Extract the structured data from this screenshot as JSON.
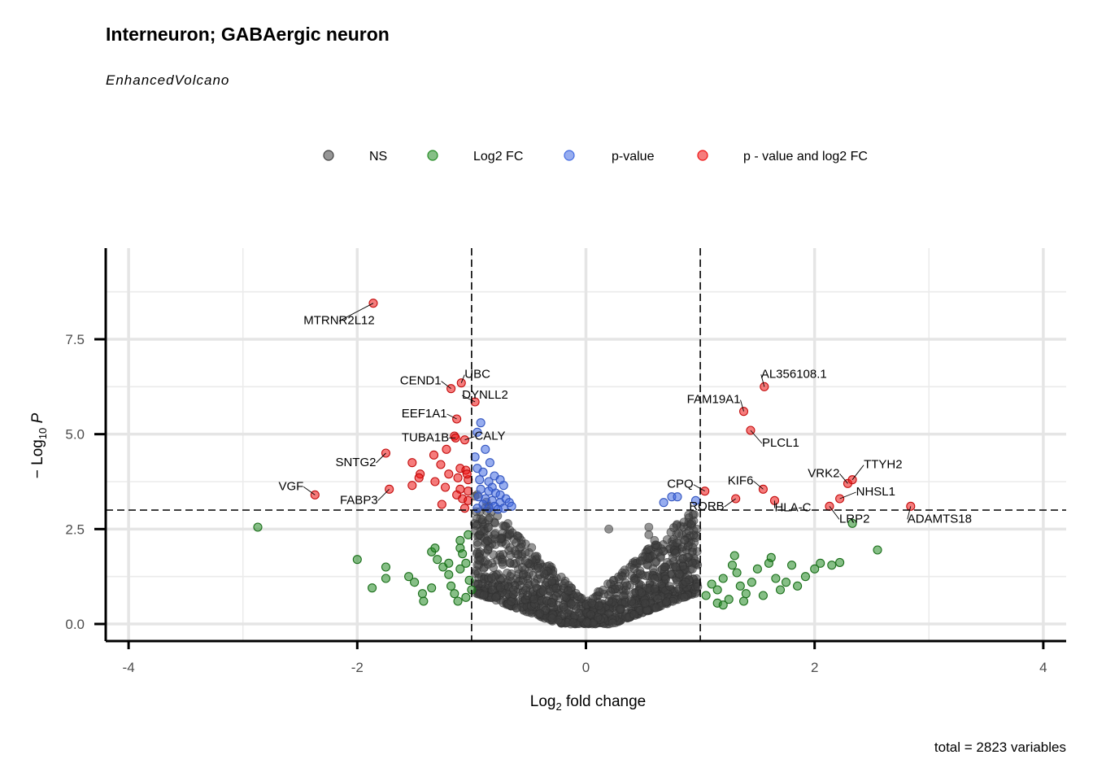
{
  "chart_data": {
    "type": "scatter",
    "title": "Interneuron; GABAergic neuron",
    "subtitle": "EnhancedVolcano",
    "caption": "total = 2823 variables",
    "xlabel": "Log2 fold change",
    "ylabel": "-Log10 P",
    "xlim": [
      -4.2,
      4.2
    ],
    "ylim": [
      -0.45,
      9.9
    ],
    "x_ticks": [
      -4,
      -2,
      0,
      2,
      4
    ],
    "y_ticks": [
      0.0,
      2.5,
      5.0,
      7.5
    ],
    "x_tick_labels": [
      "-4",
      "-2",
      "0",
      "2",
      "4"
    ],
    "y_tick_labels": [
      "0.0",
      "2.5",
      "5.0",
      "7.5"
    ],
    "fc_cutoff": 1,
    "p_cutoff_log10": 3,
    "grid": true,
    "legend_position": "top",
    "legend": [
      {
        "key": "NS",
        "color": "#404040"
      },
      {
        "key": "Log2 FC",
        "color": "#228b22"
      },
      {
        "key": "p-value",
        "color": "#4169e1"
      },
      {
        "key": "p - value and log2 FC",
        "color": "#ee1111"
      }
    ],
    "labeled_genes": [
      {
        "gene": "MTRNR2L12",
        "x": -1.86,
        "y": 8.45
      },
      {
        "gene": "CEND1",
        "x": -1.18,
        "y": 6.2
      },
      {
        "gene": "UBC",
        "x": -1.09,
        "y": 6.35
      },
      {
        "gene": "DYNLL2",
        "x": -0.97,
        "y": 5.85
      },
      {
        "gene": "EEF1A1",
        "x": -1.13,
        "y": 5.4
      },
      {
        "gene": "TUBA1B",
        "x": -1.14,
        "y": 4.9
      },
      {
        "gene": "CALY",
        "x": -1.06,
        "y": 4.85
      },
      {
        "gene": "SNTG2",
        "x": -1.75,
        "y": 4.5
      },
      {
        "gene": "VGF",
        "x": -2.37,
        "y": 3.4
      },
      {
        "gene": "FABP3",
        "x": -1.72,
        "y": 3.55
      },
      {
        "gene": "CPQ",
        "x": 1.04,
        "y": 3.5
      },
      {
        "gene": "RORB",
        "x": 1.31,
        "y": 3.3
      },
      {
        "gene": "KIF6",
        "x": 1.55,
        "y": 3.55
      },
      {
        "gene": "HLA-C",
        "x": 1.65,
        "y": 3.25
      },
      {
        "gene": "FAM19A1",
        "x": 1.38,
        "y": 5.6
      },
      {
        "gene": "PLCL1",
        "x": 1.44,
        "y": 5.1
      },
      {
        "gene": "AL356108.1",
        "x": 1.56,
        "y": 6.25
      },
      {
        "gene": "VRK2",
        "x": 2.29,
        "y": 3.7
      },
      {
        "gene": "TTYH2",
        "x": 2.33,
        "y": 3.8
      },
      {
        "gene": "NHSL1",
        "x": 2.22,
        "y": 3.3
      },
      {
        "gene": "LRP2",
        "x": 2.13,
        "y": 3.1
      },
      {
        "gene": "ADAMTS18",
        "x": 2.84,
        "y": 3.1
      }
    ],
    "points_sig": [
      {
        "x": -1.15,
        "y": 4.95
      },
      {
        "x": -1.22,
        "y": 4.6
      },
      {
        "x": -1.33,
        "y": 4.45
      },
      {
        "x": -1.27,
        "y": 4.2
      },
      {
        "x": -1.1,
        "y": 4.1
      },
      {
        "x": -1.05,
        "y": 4.05
      },
      {
        "x": -1.52,
        "y": 4.25
      },
      {
        "x": -1.45,
        "y": 3.95
      },
      {
        "x": -1.2,
        "y": 3.95
      },
      {
        "x": -1.32,
        "y": 3.75
      },
      {
        "x": -1.46,
        "y": 3.85
      },
      {
        "x": -1.52,
        "y": 3.65
      },
      {
        "x": -1.12,
        "y": 3.85
      },
      {
        "x": -1.03,
        "y": 3.8
      },
      {
        "x": -1.23,
        "y": 3.6
      },
      {
        "x": -1.1,
        "y": 3.55
      },
      {
        "x": -1.03,
        "y": 3.5
      },
      {
        "x": -1.13,
        "y": 3.4
      },
      {
        "x": -1.08,
        "y": 3.3
      },
      {
        "x": -1.03,
        "y": 3.25
      },
      {
        "x": -1.26,
        "y": 3.15
      },
      {
        "x": -1.06,
        "y": 3.05
      },
      {
        "x": -1.04,
        "y": 3.95
      }
    ],
    "points_p": [
      {
        "x": -0.92,
        "y": 5.3
      },
      {
        "x": -0.95,
        "y": 5.05
      },
      {
        "x": -0.88,
        "y": 4.6
      },
      {
        "x": -0.97,
        "y": 4.4
      },
      {
        "x": -0.84,
        "y": 4.25
      },
      {
        "x": -0.95,
        "y": 4.1
      },
      {
        "x": -0.9,
        "y": 4.0
      },
      {
        "x": -0.8,
        "y": 3.9
      },
      {
        "x": -0.93,
        "y": 3.8
      },
      {
        "x": -0.85,
        "y": 3.75
      },
      {
        "x": -0.75,
        "y": 3.8
      },
      {
        "x": -0.72,
        "y": 3.65
      },
      {
        "x": -0.82,
        "y": 3.6
      },
      {
        "x": -0.92,
        "y": 3.55
      },
      {
        "x": -0.85,
        "y": 3.5
      },
      {
        "x": -0.79,
        "y": 3.45
      },
      {
        "x": -0.75,
        "y": 3.4
      },
      {
        "x": -0.94,
        "y": 3.35
      },
      {
        "x": -0.88,
        "y": 3.3
      },
      {
        "x": -0.82,
        "y": 3.25
      },
      {
        "x": -0.75,
        "y": 3.2
      },
      {
        "x": -0.7,
        "y": 3.3
      },
      {
        "x": -0.67,
        "y": 3.2
      },
      {
        "x": -0.9,
        "y": 3.15
      },
      {
        "x": -0.8,
        "y": 3.1
      },
      {
        "x": -0.72,
        "y": 3.05
      },
      {
        "x": -0.65,
        "y": 3.1
      },
      {
        "x": -0.95,
        "y": 3.05
      },
      {
        "x": -0.85,
        "y": 3.05
      },
      {
        "x": -0.77,
        "y": 3.02
      },
      {
        "x": 0.68,
        "y": 3.2
      },
      {
        "x": 0.75,
        "y": 3.35
      },
      {
        "x": 0.8,
        "y": 3.35
      },
      {
        "x": 0.96,
        "y": 3.25
      }
    ],
    "points_fc": [
      {
        "x": -2.87,
        "y": 2.55
      },
      {
        "x": -2.0,
        "y": 1.7
      },
      {
        "x": -1.87,
        "y": 0.95
      },
      {
        "x": -1.75,
        "y": 1.5
      },
      {
        "x": -1.75,
        "y": 1.2
      },
      {
        "x": -1.55,
        "y": 1.25
      },
      {
        "x": -1.5,
        "y": 1.1
      },
      {
        "x": -1.43,
        "y": 0.8
      },
      {
        "x": -1.42,
        "y": 0.6
      },
      {
        "x": -1.35,
        "y": 0.95
      },
      {
        "x": -1.35,
        "y": 1.9
      },
      {
        "x": -1.32,
        "y": 2.0
      },
      {
        "x": -1.3,
        "y": 1.7
      },
      {
        "x": -1.25,
        "y": 1.5
      },
      {
        "x": -1.2,
        "y": 1.6
      },
      {
        "x": -1.2,
        "y": 1.3
      },
      {
        "x": -1.18,
        "y": 1.0
      },
      {
        "x": -1.15,
        "y": 0.8
      },
      {
        "x": -1.12,
        "y": 0.6
      },
      {
        "x": -1.1,
        "y": 1.45
      },
      {
        "x": -1.1,
        "y": 2.0
      },
      {
        "x": -1.1,
        "y": 2.2
      },
      {
        "x": -1.08,
        "y": 1.85
      },
      {
        "x": -1.05,
        "y": 1.6
      },
      {
        "x": -1.05,
        "y": 0.7
      },
      {
        "x": -1.03,
        "y": 2.35
      },
      {
        "x": -1.02,
        "y": 1.15
      },
      {
        "x": -1.0,
        "y": 0.9
      },
      {
        "x": 1.05,
        "y": 0.75
      },
      {
        "x": 1.1,
        "y": 1.05
      },
      {
        "x": 1.15,
        "y": 0.9
      },
      {
        "x": 1.2,
        "y": 1.2
      },
      {
        "x": 1.25,
        "y": 0.65
      },
      {
        "x": 1.28,
        "y": 1.55
      },
      {
        "x": 1.3,
        "y": 1.8
      },
      {
        "x": 1.32,
        "y": 1.35
      },
      {
        "x": 1.35,
        "y": 1.0
      },
      {
        "x": 1.4,
        "y": 0.8
      },
      {
        "x": 1.45,
        "y": 1.1
      },
      {
        "x": 1.5,
        "y": 1.45
      },
      {
        "x": 1.55,
        "y": 0.75
      },
      {
        "x": 1.6,
        "y": 1.6
      },
      {
        "x": 1.62,
        "y": 1.75
      },
      {
        "x": 1.66,
        "y": 1.2
      },
      {
        "x": 1.7,
        "y": 0.9
      },
      {
        "x": 1.75,
        "y": 1.1
      },
      {
        "x": 1.8,
        "y": 1.55
      },
      {
        "x": 1.85,
        "y": 1.0
      },
      {
        "x": 1.92,
        "y": 1.25
      },
      {
        "x": 2.0,
        "y": 1.45
      },
      {
        "x": 2.05,
        "y": 1.6
      },
      {
        "x": 2.15,
        "y": 1.55
      },
      {
        "x": 2.22,
        "y": 1.62
      },
      {
        "x": 2.33,
        "y": 2.65
      },
      {
        "x": 2.55,
        "y": 1.95
      },
      {
        "x": 1.15,
        "y": 0.55
      },
      {
        "x": 1.2,
        "y": 0.5
      },
      {
        "x": 1.38,
        "y": 0.6
      }
    ]
  }
}
